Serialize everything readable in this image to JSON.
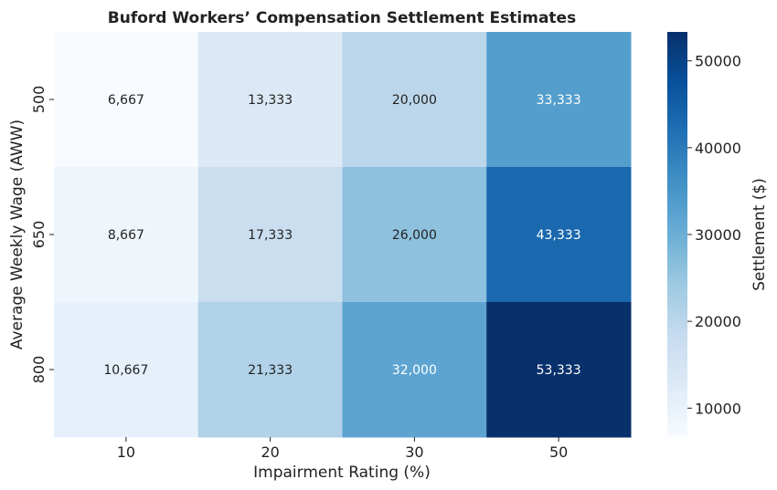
{
  "chart_data": {
    "type": "heatmap",
    "title": "Buford Workers’ Compensation Settlement Estimates",
    "xlabel": "Impairment Rating (%)",
    "ylabel": "Average Weekly Wage (AWW)",
    "x_categories": [
      "10",
      "20",
      "30",
      "50"
    ],
    "y_categories": [
      "500",
      "650",
      "800"
    ],
    "values": [
      [
        6667,
        13333,
        20000,
        33333
      ],
      [
        8667,
        17333,
        26000,
        43333
      ],
      [
        10667,
        21333,
        32000,
        53333
      ]
    ],
    "cell_labels": [
      [
        "6,667",
        "13,333",
        "20,000",
        "33,333"
      ],
      [
        "8,667",
        "17,333",
        "26,000",
        "43,333"
      ],
      [
        "10,667",
        "21,333",
        "32,000",
        "53,333"
      ]
    ],
    "colorbar": {
      "label": "Settlement ($)",
      "range": [
        6667,
        53333
      ],
      "ticks": [
        10000,
        20000,
        30000,
        40000,
        50000
      ],
      "tick_labels": [
        "10000",
        "20000",
        "30000",
        "40000",
        "50000"
      ]
    },
    "colormap": "Blues",
    "colormap_stops": [
      "#f7fbff",
      "#deebf7",
      "#c6dbef",
      "#9ecae1",
      "#6baed6",
      "#4292c6",
      "#2171b5",
      "#08519c",
      "#08306b"
    ],
    "text_colors": {
      "light": "#ffffff",
      "dark": "#222222"
    }
  }
}
